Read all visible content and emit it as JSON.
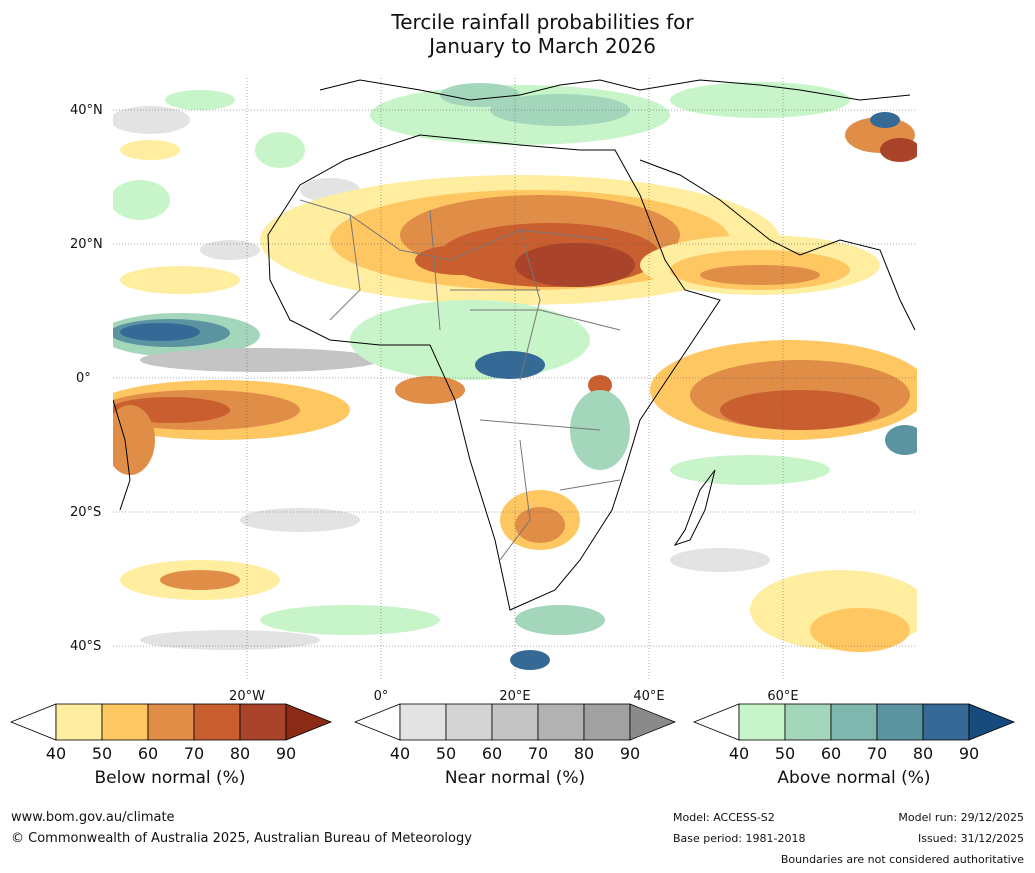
{
  "title": {
    "line1": "Tercile rainfall probabilities for",
    "line2": "January to March 2026"
  },
  "map": {
    "lat_labels": [
      "40°N",
      "20°N",
      "0°",
      "20°S",
      "40°S"
    ],
    "lon_labels": [
      "20°W",
      "0°",
      "20°E",
      "40°E",
      "60°E"
    ]
  },
  "colorbars": [
    {
      "label": "Below normal (%)",
      "ticks": [
        "40",
        "50",
        "60",
        "70",
        "80",
        "90"
      ],
      "colors": [
        "#ffffff",
        "#ffeda0",
        "#fec761",
        "#e08d47",
        "#c95e2f",
        "#a9432a",
        "#8b2a16"
      ]
    },
    {
      "label": "Near normal (%)",
      "ticks": [
        "40",
        "50",
        "60",
        "70",
        "80",
        "90"
      ],
      "colors": [
        "#ffffff",
        "#e3e3e3",
        "#d4d4d4",
        "#c4c4c4",
        "#b2b2b2",
        "#a1a1a1",
        "#8a8a8a"
      ]
    },
    {
      "label": "Above normal (%)",
      "ticks": [
        "40",
        "50",
        "60",
        "70",
        "80",
        "90"
      ],
      "colors": [
        "#ffffff",
        "#c7f5c9",
        "#a3d6bb",
        "#7fb6ae",
        "#5b93a0",
        "#356a96",
        "#174b7e"
      ]
    }
  ],
  "footer": {
    "url": "www.bom.gov.au/climate",
    "copyright": "© Commonwealth of Australia 2025, Australian Bureau of Meteorology",
    "model": "Model: ACCESS-S2",
    "base_period": "Base period: 1981-2018",
    "model_run": "Model run: 29/12/2025",
    "issued": "Issued: 31/12/2025",
    "disclaimer": "Boundaries are not considered authoritative"
  }
}
